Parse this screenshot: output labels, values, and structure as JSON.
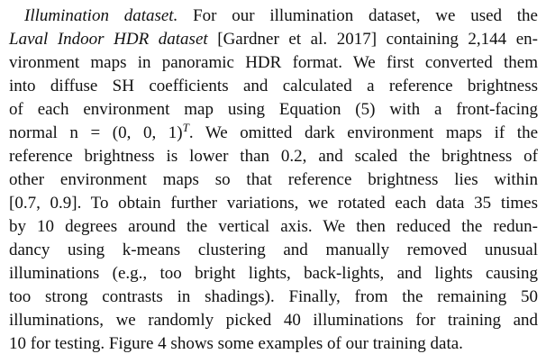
{
  "paragraph": {
    "heading": "Illumination dataset.",
    "lines": [
      {
        "a": "For our illumination dataset, we used the"
      },
      {
        "dataset_name": "Laval Indoor HDR dataset",
        "a": "[Gardner et al. 2017] containing 2,144 en-"
      },
      {
        "a": "vironment maps in panoramic HDR format. We first converted them"
      },
      {
        "a": "into diffuse SH coefficients and calculated a reference brightness"
      },
      {
        "a": "of each environment map using Equation (5) with a front-facing"
      },
      {
        "a": "normal n = (0, 0, 1)",
        "sup": "T",
        "b": ". We omitted dark environment maps if the"
      },
      {
        "a": "reference brightness is lower than 0.2, and scaled the brightness of"
      },
      {
        "a": "other environment maps so that reference brightness lies within"
      },
      {
        "a": "[0.7, 0.9]. To obtain further variations, we rotated each data 35 times"
      },
      {
        "a": "by 10 degrees around the vertical axis. We then reduced the redun-"
      },
      {
        "a": "dancy using k-means clustering and manually removed unusual"
      },
      {
        "a": "illuminations (e.g., too bright lights, back-lights, and lights causing"
      },
      {
        "a": "too strong contrasts in shadings). Finally, from the remaining 50"
      },
      {
        "a": "illuminations, we randomly picked 40 illuminations for training and"
      },
      {
        "a": "10 for testing. Figure 4 shows some examples of our training data."
      }
    ]
  }
}
